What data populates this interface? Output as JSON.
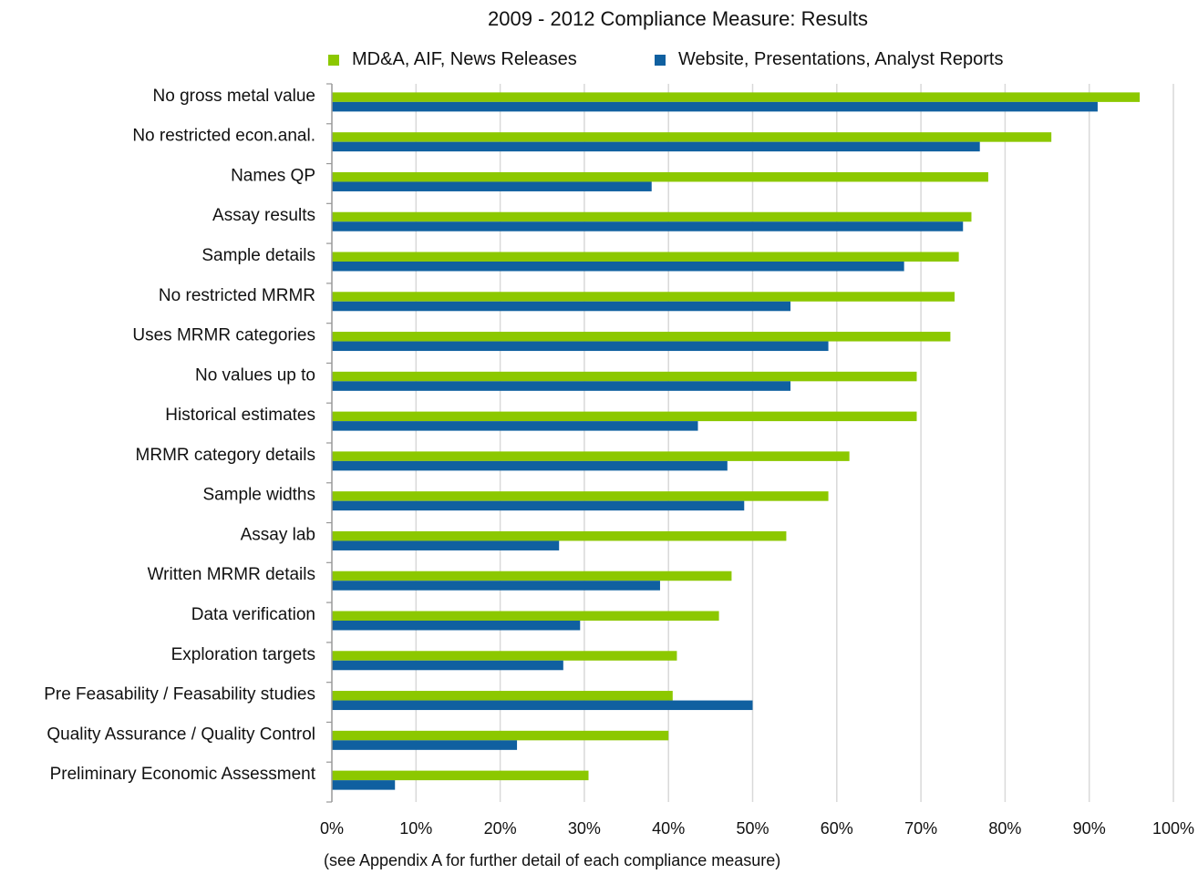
{
  "chart_data": {
    "type": "bar",
    "orientation": "horizontal",
    "title": "2009 - 2012 Compliance Measure:  Results",
    "categories": [
      "No gross metal value",
      "No restricted econ.anal.",
      "Names QP",
      "Assay results",
      "Sample details",
      "No restricted MRMR",
      "Uses MRMR categories",
      "No values up to",
      "Historical  estimates",
      "MRMR category details",
      "Sample widths",
      "Assay lab",
      "Written MRMR details",
      "Data verification",
      "Exploration targets",
      "Pre Feasability / Feasability studies",
      "Quality Assurance / Quality Control",
      "Preliminary Economic Assessment"
    ],
    "series": [
      {
        "name": "MD&A, AIF, News Releases",
        "color": "#8cc800",
        "values": [
          96,
          85.5,
          78,
          76,
          74.5,
          74,
          73.5,
          69.5,
          69.5,
          61.5,
          59,
          54,
          47.5,
          46,
          41,
          40.5,
          40,
          30.5
        ]
      },
      {
        "name": "Website, Presentations, Analyst Reports",
        "color": "#1060a0",
        "values": [
          91,
          77,
          38,
          75,
          68,
          54.5,
          59,
          54.5,
          43.5,
          47,
          49,
          27,
          39,
          29.5,
          27.5,
          50,
          22,
          7.5
        ]
      }
    ],
    "xlim": [
      0,
      100
    ],
    "xticks": [
      "0%",
      "10%",
      "20%",
      "30%",
      "40%",
      "50%",
      "60%",
      "70%",
      "80%",
      "90%",
      "100%"
    ],
    "grid": true,
    "legend_position": "top",
    "footnote": "(see Appendix A for further detail of each compliance measure)",
    "grid_color": "#d9d9d9",
    "axis_color": "#999999"
  }
}
